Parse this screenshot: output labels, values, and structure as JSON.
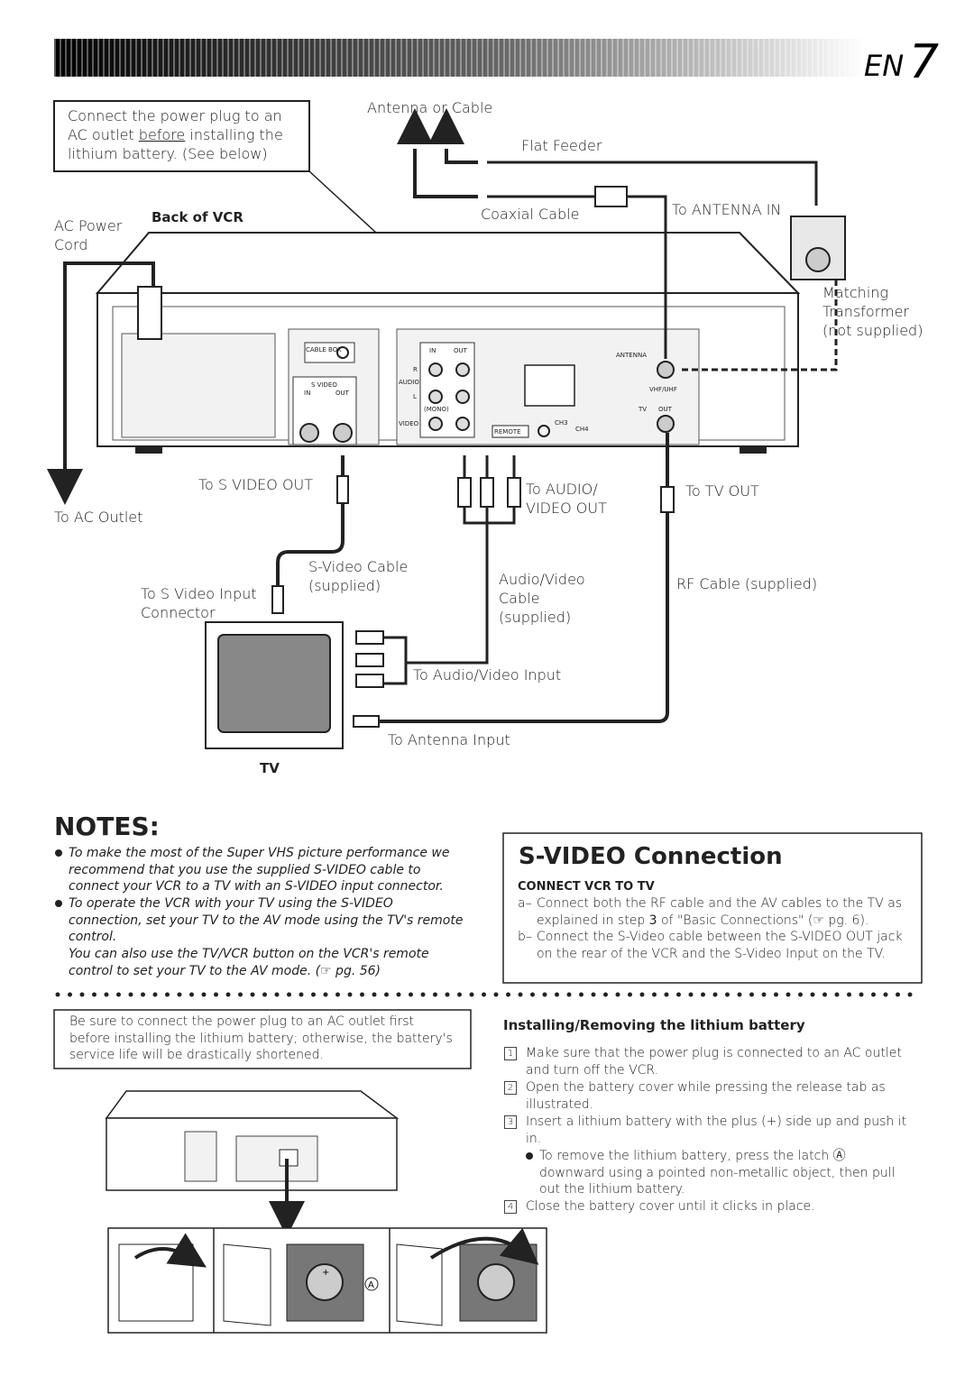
{
  "header": {
    "lang": "EN",
    "page": "7"
  },
  "diagram": {
    "power_note": {
      "before": "Connect the power plug to an AC outlet ",
      "underlined": "before",
      "after": " installing the lithium battery. (See below)"
    },
    "labels": {
      "antenna_or_cable": "Antenna or Cable",
      "flat_feeder": "Flat Feeder",
      "coaxial_cable": "Coaxial Cable",
      "to_antenna_in": "To ANTENNA IN",
      "ac_power_cord": "AC Power Cord",
      "back_of_vcr": "Back of VCR",
      "matching_transformer": "Matching Transformer (not supplied)",
      "to_s_video_out": "To S VIDEO OUT",
      "to_ac_outlet": "To AC Outlet",
      "to_audio_video_out": "To AUDIO/ VIDEO OUT",
      "to_tv_out": "To TV OUT",
      "s_video_cable": "S-Video Cable (supplied)",
      "to_s_video_input": "To S Video Input Connector",
      "av_cable": "Audio/Video Cable (supplied)",
      "rf_cable": "RF Cable (supplied)",
      "to_av_input": "To Audio/Video Input",
      "to_antenna_input": "To Antenna Input",
      "tv": "TV"
    },
    "vcr_panel": {
      "cable_box": "CABLE BOX",
      "s_video": "S VIDEO",
      "s_in": "IN",
      "s_out": "OUT",
      "av_in": "IN",
      "av_out": "OUT",
      "r": "R",
      "audio": "AUDIO",
      "l": "L",
      "mono": "(MONO)",
      "video": "VIDEO",
      "remote": "REMOTE",
      "ch3": "CH3",
      "ch4": "CH4",
      "antenna": "ANTENNA",
      "vhf_uhf": "VHF/UHF",
      "tv": "TV",
      "tv_out": "OUT"
    }
  },
  "notes": {
    "title": "NOTES:",
    "items": [
      "To make the most of the Super VHS picture performance we recommend that you use the supplied S-VIDEO cable to connect your VCR to a TV with an S-VIDEO input connector.",
      "To operate the VCR with your TV using the S-VIDEO connection, set your TV to the AV mode using the TV's remote control."
    ],
    "extra": {
      "before": "You can also use the ",
      "bold": "TV/VCR",
      "after": " button on the VCR's remote control to set your TV to the AV mode. (☞ pg. 56)"
    }
  },
  "s_video": {
    "title": "S-VIDEO Connection",
    "subtitle": "CONNECT VCR TO TV",
    "items": [
      {
        "marker": "a–",
        "before": "Connect both the RF cable and the AV cables to the TV as explained in step ",
        "bold": "3",
        "after": " of \"Basic Connections\" (☞ pg. 6)."
      },
      {
        "marker": "b–",
        "text": "Connect the S-Video cable between the S-VIDEO OUT jack on the rear of the VCR and the S-Video Input on the TV."
      }
    ]
  },
  "warning": "Be sure to connect the power plug to an AC outlet first before installing the lithium battery; otherwise, the battery's service life will be drastically shortened.",
  "battery": {
    "title": "Installing/Removing the lithium battery",
    "steps": [
      {
        "number": "1",
        "text": "Make sure that the power plug is connected to an AC outlet and turn off the VCR."
      },
      {
        "number": "2",
        "text": "Open the battery cover while pressing the release tab as illustrated."
      },
      {
        "number": "3",
        "text": "Insert a lithium battery with the plus (+) side up and push it in.",
        "sub": "To remove the lithium battery, press the latch Ⓐ downward using a pointed non-metallic object, then pull out the lithium battery."
      },
      {
        "number": "4",
        "text": "Close the battery cover until it clicks in place."
      }
    ],
    "latch_label": "A",
    "plus": "+"
  }
}
